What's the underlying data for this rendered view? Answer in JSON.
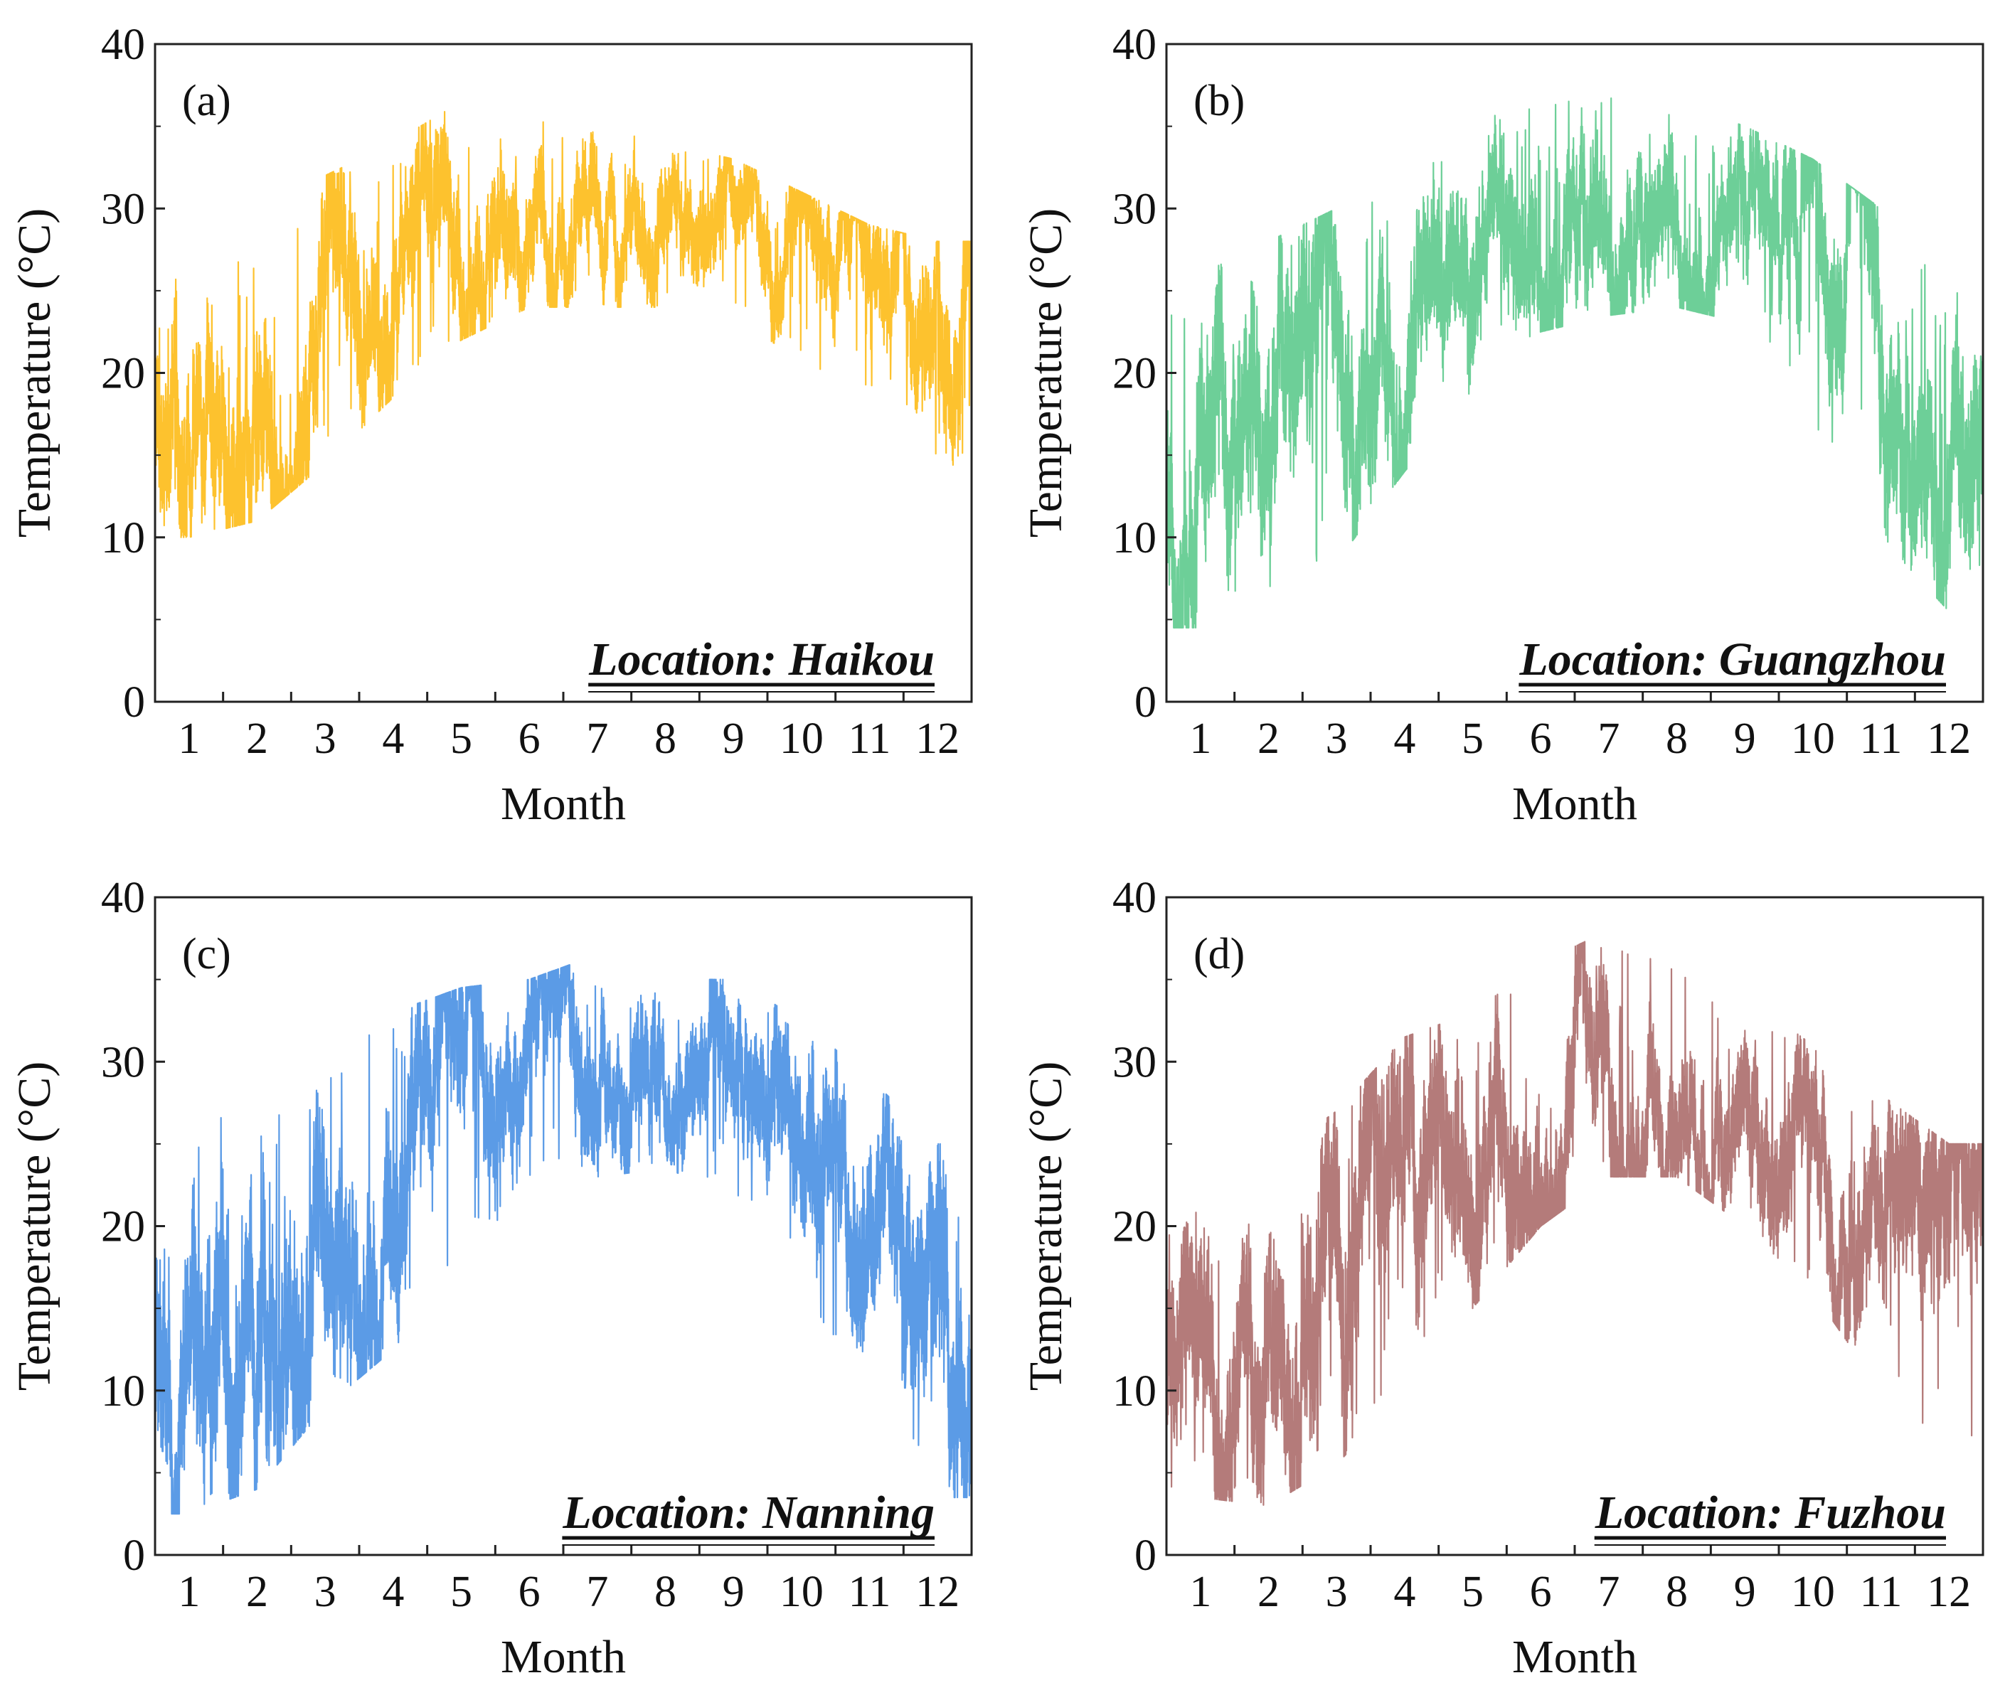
{
  "figure": {
    "title": ""
  },
  "chart_data": [
    {
      "type": "line",
      "panel_label": "(a)",
      "location_label": "Location: Haikou",
      "xlabel": "Month",
      "ylabel": "Temperature (°C)",
      "ylim": [
        0,
        40
      ],
      "yticks": [
        "0",
        "10",
        "20",
        "30",
        "40"
      ],
      "xticks": [
        "1",
        "2",
        "3",
        "4",
        "5",
        "6",
        "7",
        "8",
        "9",
        "10",
        "11",
        "12"
      ],
      "color": "#FDC22E",
      "grid": false,
      "series": [
        {
          "name": "Haikou",
          "monthly_mean": [
            17,
            20,
            23,
            26,
            27,
            29,
            29,
            28.5,
            28,
            26.5,
            23,
            19
          ],
          "monthly_max": [
            27,
            30,
            32,
            34,
            36.5,
            36.5,
            35,
            34,
            33,
            31,
            29,
            28
          ],
          "monthly_min": [
            10,
            11,
            14.5,
            18.5,
            22,
            24,
            24,
            24,
            23,
            21,
            17,
            13
          ]
        }
      ]
    },
    {
      "type": "line",
      "panel_label": "(b)",
      "location_label": "Location: Guangzhou",
      "xlabel": "Month",
      "ylabel": "Temperature (°C)",
      "ylim": [
        0,
        40
      ],
      "yticks": [
        "0",
        "10",
        "20",
        "30",
        "40"
      ],
      "xticks": [
        "1",
        "2",
        "3",
        "4",
        "5",
        "6",
        "7",
        "8",
        "9",
        "10",
        "11",
        "12"
      ],
      "color": "#6DCF98",
      "grid": false,
      "series": [
        {
          "name": "Guangzhou",
          "monthly_mean": [
            14,
            16,
            19,
            23,
            26,
            28,
            29,
            29.5,
            28.5,
            25,
            20,
            15
          ],
          "monthly_max": [
            26,
            28,
            30,
            32,
            35,
            37,
            37.5,
            36.5,
            35,
            33,
            30,
            26
          ],
          "monthly_min": [
            4.5,
            5.5,
            8.5,
            14,
            19,
            22.5,
            23.5,
            24,
            23,
            16,
            10,
            5.5
          ]
        }
      ]
    },
    {
      "type": "line",
      "panel_label": "(c)",
      "location_label": "Location: Nanning",
      "xlabel": "Month",
      "ylabel": "Temperature (°C)",
      "ylim": [
        0,
        40
      ],
      "yticks": [
        "0",
        "10",
        "20",
        "30",
        "40"
      ],
      "xticks": [
        "1",
        "2",
        "3",
        "4",
        "5",
        "6",
        "7",
        "8",
        "9",
        "10",
        "11",
        "12"
      ],
      "color": "#5B9BE6",
      "grid": false,
      "series": [
        {
          "name": "Nanning",
          "monthly_mean": [
            12.5,
            14.5,
            18,
            22.5,
            26,
            27.5,
            28.5,
            28.5,
            27.5,
            24,
            19,
            14
          ],
          "monthly_max": [
            25,
            29.5,
            31,
            33,
            34.5,
            35,
            36.5,
            35,
            35,
            32.5,
            29,
            25
          ],
          "monthly_min": [
            2.5,
            4,
            9,
            12.5,
            18,
            21.5,
            23,
            23.5,
            22,
            15,
            9.5,
            3.5
          ]
        }
      ]
    },
    {
      "type": "line",
      "panel_label": "(d)",
      "location_label": "Location: Fuzhou",
      "xlabel": "Month",
      "ylabel": "Temperature (°C)",
      "ylim": [
        0,
        40
      ],
      "yticks": [
        "0",
        "10",
        "20",
        "30",
        "40"
      ],
      "xticks": [
        "1",
        "2",
        "3",
        "4",
        "5",
        "6",
        "7",
        "8",
        "9",
        "10",
        "11",
        "12"
      ],
      "color": "#B47B7A",
      "grid": false,
      "series": [
        {
          "name": "Fuzhou",
          "monthly_mean": [
            11,
            11,
            14,
            18,
            22.5,
            26,
            29,
            29,
            27,
            23,
            19,
            14
          ],
          "monthly_max": [
            22,
            24,
            27,
            31.5,
            33,
            36,
            38,
            36.5,
            34,
            31,
            28,
            25
          ],
          "monthly_min": [
            3.5,
            3,
            5.5,
            10,
            15,
            20,
            23,
            23,
            20,
            16,
            10,
            5
          ]
        }
      ]
    }
  ]
}
